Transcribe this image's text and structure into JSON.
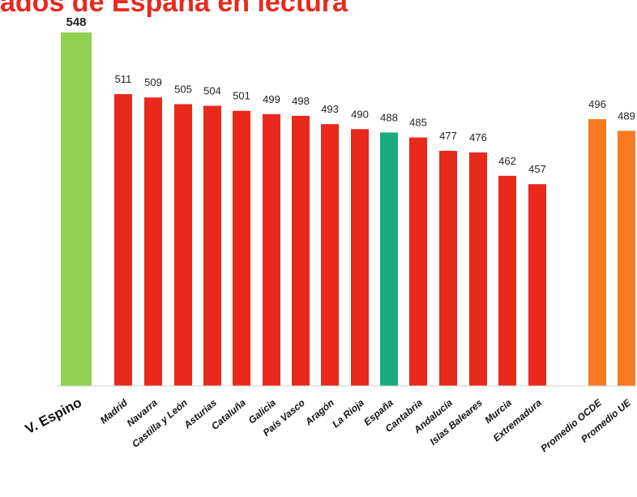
{
  "chart_data": {
    "type": "bar",
    "title": "ados de España en lectura",
    "categories": [
      "V. Espino",
      "Madrid",
      "Navarra",
      "Castilla y León",
      "Asturias",
      "Cataluña",
      "Galicia",
      "País Vasco",
      "Aragón",
      "La Rioja",
      "España",
      "Cantabria",
      "Andalucía",
      "Islas Baleares",
      "Murcia",
      "Extremadura",
      "Promedio OCDE",
      "Promedio UE"
    ],
    "values": [
      548,
      511,
      509,
      505,
      504,
      501,
      499,
      498,
      493,
      490,
      488,
      485,
      477,
      476,
      462,
      457,
      496,
      489
    ],
    "bar_colors": [
      "#92d050",
      "#e8291c",
      "#e8291c",
      "#e8291c",
      "#e8291c",
      "#e8291c",
      "#e8291c",
      "#e8291c",
      "#e8291c",
      "#e8291c",
      "#1aab7e",
      "#e8291c",
      "#e8291c",
      "#e8291c",
      "#e8291c",
      "#e8291c",
      "#f57a20",
      "#f57a20"
    ],
    "title_color": "#e8291c",
    "ylim": [
      336,
      548
    ],
    "xlabel": "",
    "ylabel": "",
    "grid": false,
    "legend": "none"
  }
}
